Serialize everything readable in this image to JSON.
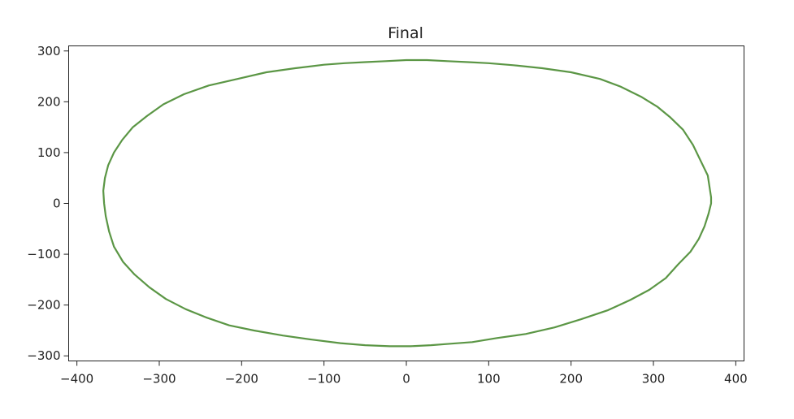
{
  "chart_data": {
    "type": "line",
    "title": "Final",
    "xlabel": "",
    "ylabel": "",
    "xlim": [
      -410,
      410
    ],
    "ylim": [
      -310,
      310
    ],
    "xticks": [
      -400,
      -300,
      -200,
      -100,
      0,
      100,
      200,
      300,
      400
    ],
    "yticks": [
      -300,
      -200,
      -100,
      0,
      100,
      200,
      300
    ],
    "xtick_labels": [
      "−400",
      "−300",
      "−200",
      "−100",
      "0",
      "100",
      "200",
      "300",
      "400"
    ],
    "ytick_labels": [
      "−300",
      "−200",
      "−100",
      "0",
      "100",
      "200",
      "300"
    ],
    "grid": false,
    "legend": "none",
    "series": [
      {
        "color": "#5b9645",
        "x": [
          370,
          366,
          357,
          348,
          336,
          320,
          305,
          285,
          260,
          235,
          200,
          165,
          130,
          100,
          75,
          50,
          25,
          0,
          -25,
          -50,
          -75,
          -100,
          -135,
          -170,
          -205,
          -240,
          -270,
          -295,
          -315,
          -332,
          -345,
          -355,
          -362,
          -366,
          -368,
          -367,
          -365,
          -361,
          -355,
          -344,
          -330,
          -312,
          -292,
          -268,
          -242,
          -215,
          -185,
          -150,
          -115,
          -80,
          -50,
          -20,
          5,
          30,
          55,
          80,
          110,
          145,
          180,
          212,
          245,
          272,
          295,
          315,
          330,
          345,
          355,
          362,
          367,
          370
        ],
        "y": [
          12,
          55,
          85,
          115,
          145,
          170,
          190,
          210,
          230,
          245,
          258,
          266,
          272,
          276,
          278,
          280,
          282,
          282,
          280,
          278,
          276,
          273,
          266,
          258,
          245,
          232,
          215,
          195,
          172,
          150,
          125,
          100,
          75,
          50,
          25,
          0,
          -25,
          -55,
          -85,
          -115,
          -140,
          -165,
          -188,
          -208,
          -225,
          -240,
          -250,
          -260,
          -268,
          -275,
          -279,
          -281,
          -281,
          -279,
          -276,
          -273,
          -265,
          -257,
          -244,
          -228,
          -210,
          -190,
          -170,
          -147,
          -120,
          -95,
          -70,
          -45,
          -20,
          0
        ]
      }
    ]
  }
}
